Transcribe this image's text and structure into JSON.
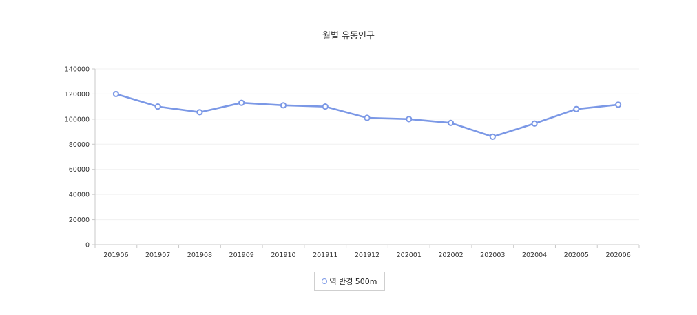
{
  "chart_data": {
    "type": "line",
    "title": "월별 유동인구",
    "categories": [
      "201906",
      "201907",
      "201908",
      "201909",
      "201910",
      "201911",
      "201912",
      "202001",
      "202002",
      "202003",
      "202004",
      "202005",
      "202006"
    ],
    "series": [
      {
        "name": "역 반경 500m",
        "values": [
          120000,
          110000,
          105500,
          113000,
          111000,
          110000,
          101000,
          100000,
          97000,
          86000,
          96500,
          108000,
          111500
        ]
      }
    ],
    "ylim": [
      0,
      140000
    ],
    "yticks": [
      "140000",
      "120000",
      "100000",
      "80000",
      "60000",
      "40000",
      "20000",
      "0"
    ],
    "grid": true,
    "legend_position": "bottom",
    "colors": {
      "line": "#7b98e6",
      "marker_fill": "#ffffff",
      "grid": "#f0f0f0",
      "axis": "#c8c8c8"
    }
  }
}
